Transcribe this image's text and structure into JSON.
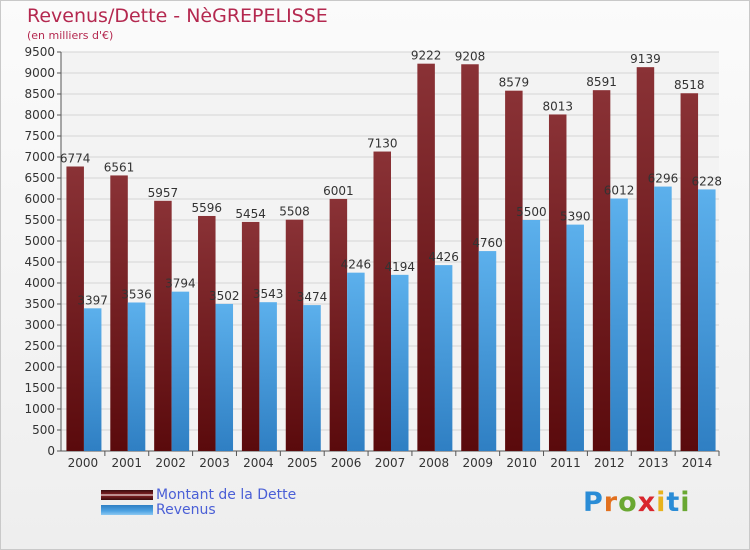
{
  "header": {
    "title": "Revenus/Dette - NèGREPELISSE",
    "subtitle": "(en milliers d'€)"
  },
  "legend": {
    "items": [
      {
        "label": "Montant de la Dette",
        "color": "#7a1f22"
      },
      {
        "label": "Revenus",
        "color": "#4fa3e3"
      }
    ]
  },
  "logo": {
    "text": "Proxiti",
    "letter_colors": [
      "#2a8cd6",
      "#e2701e",
      "#6aa832",
      "#d9262d",
      "#e8b31d",
      "#2a8cd6",
      "#6aa832"
    ]
  },
  "chart_data": {
    "type": "bar",
    "title": "Revenus/Dette - NèGREPELISSE",
    "subtitle": "(en milliers d'€)",
    "categories": [
      "2000",
      "2001",
      "2002",
      "2003",
      "2004",
      "2005",
      "2006",
      "2007",
      "2008",
      "2009",
      "2010",
      "2011",
      "2012",
      "2013",
      "2014"
    ],
    "series": [
      {
        "name": "Montant de la Dette",
        "color": "#7a1f22",
        "values": [
          6774,
          6561,
          5957,
          5596,
          5454,
          5508,
          6001,
          7130,
          9222,
          9208,
          8579,
          8013,
          8591,
          9139,
          8518
        ]
      },
      {
        "name": "Revenus",
        "color": "#4fa3e3",
        "values": [
          3397,
          3536,
          3794,
          3502,
          3543,
          3474,
          4246,
          4194,
          4426,
          4760,
          5500,
          5390,
          6012,
          6296,
          6228
        ]
      }
    ],
    "ylim": [
      0,
      9500
    ],
    "yticks": [
      0,
      500,
      1000,
      1500,
      2000,
      2500,
      3000,
      3500,
      4000,
      4500,
      5000,
      5500,
      6000,
      6500,
      7000,
      7500,
      8000,
      8500,
      9000,
      9500
    ],
    "grid": true,
    "legend_position": "bottom-left"
  }
}
